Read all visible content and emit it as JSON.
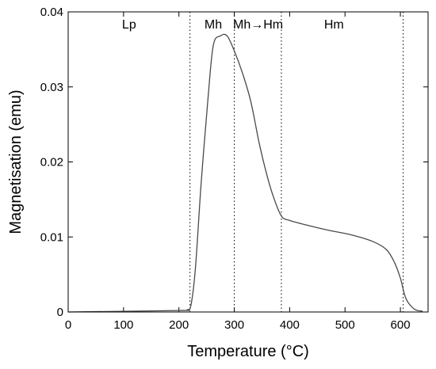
{
  "chart_data": {
    "type": "line",
    "title": "",
    "xlabel": "Temperature (°C)",
    "ylabel": "Magnetisation (emu)",
    "xlim": [
      0,
      650
    ],
    "ylim": [
      0,
      0.04
    ],
    "x_ticks": [
      0,
      100,
      200,
      300,
      400,
      500,
      600
    ],
    "x_tick_labels": [
      "0",
      "100",
      "200",
      "300",
      "400",
      "500",
      "600"
    ],
    "y_ticks": [
      0,
      0.01,
      0.02,
      0.03,
      0.04
    ],
    "y_tick_labels": [
      "0",
      "0.01",
      "0.02",
      "0.03",
      "0.04"
    ],
    "grid": false,
    "legend": "none",
    "colors": {
      "line": "#4a4a4a",
      "frame": "#000000",
      "dotted": "#000000"
    },
    "vlines": [
      220,
      300,
      385,
      605
    ],
    "regions": [
      {
        "label": "Lp",
        "x": 110
      },
      {
        "label": "Mh",
        "x": 262
      },
      {
        "label": "Mh→Hm",
        "x": 343
      },
      {
        "label": "Hm",
        "x": 480
      }
    ],
    "series": [
      {
        "x": [
          0,
          200,
          215,
          222,
          230,
          240,
          252,
          262,
          275,
          287,
          300,
          315,
          330,
          345,
          358,
          370,
          385,
          400,
          430,
          470,
          510,
          550,
          575,
          590,
          600,
          610,
          625,
          640
        ],
        "y": [
          0,
          0.0002,
          0.0003,
          0.001,
          0.006,
          0.017,
          0.028,
          0.0355,
          0.0368,
          0.0368,
          0.0348,
          0.0318,
          0.028,
          0.0225,
          0.0185,
          0.0155,
          0.0128,
          0.0122,
          0.0116,
          0.0109,
          0.0103,
          0.0094,
          0.0083,
          0.0065,
          0.0045,
          0.0018,
          0.0004,
          0.0001
        ]
      }
    ]
  }
}
